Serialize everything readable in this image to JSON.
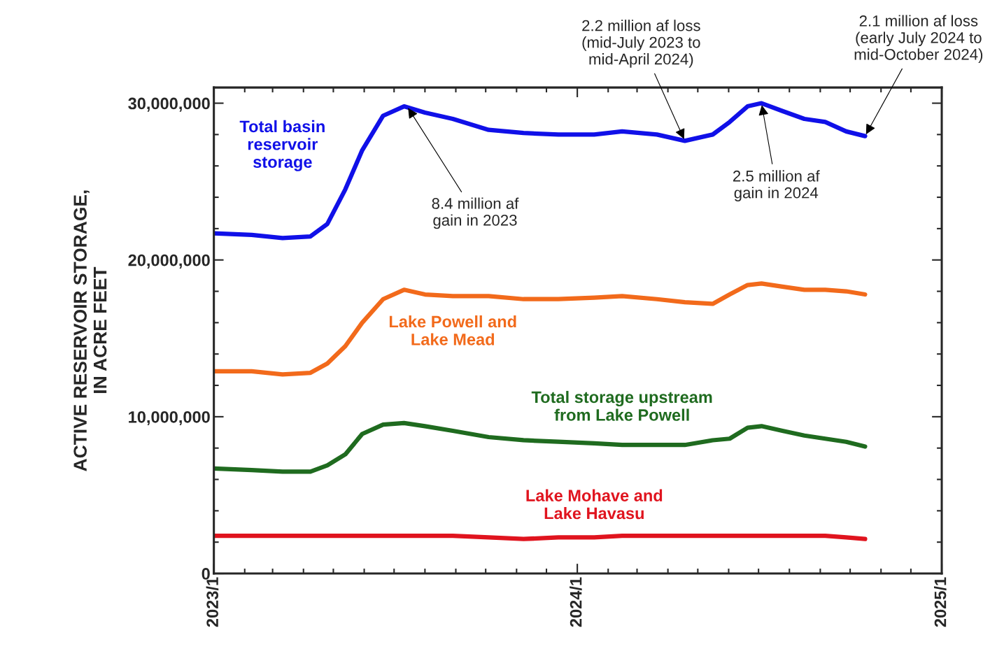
{
  "chart_data": {
    "type": "line",
    "ylabel": "ACTIVE RESERVOIR STORAGE,\nIN ACRE FEET",
    "x": [
      "2023-01-01",
      "2023-02-08",
      "2023-03-11",
      "2023-04-08",
      "2023-04-25",
      "2023-05-13",
      "2023-05-30",
      "2023-06-20",
      "2023-07-11",
      "2023-08-01",
      "2023-08-29",
      "2023-10-04",
      "2023-11-08",
      "2023-12-13",
      "2024-01-18",
      "2024-02-15",
      "2024-03-21",
      "2024-04-18",
      "2024-05-16",
      "2024-06-02",
      "2024-06-20",
      "2024-07-04",
      "2024-07-25",
      "2024-08-16",
      "2024-09-06",
      "2024-09-27",
      "2024-10-16"
    ],
    "series": [
      {
        "name": "Total basin\nreservoir\nstorage",
        "color": "#1010e8",
        "values": [
          21700000,
          21600000,
          21400000,
          21500000,
          22300000,
          24500000,
          27000000,
          29200000,
          29800000,
          29400000,
          29000000,
          28300000,
          28100000,
          28000000,
          28000000,
          28200000,
          28000000,
          27600000,
          28000000,
          28800000,
          29800000,
          30000000,
          29500000,
          29000000,
          28800000,
          28200000,
          27900000
        ]
      },
      {
        "name": "Lake Powell and\nLake Mead",
        "color": "#f26a1b",
        "values": [
          12900000,
          12900000,
          12700000,
          12800000,
          13400000,
          14500000,
          16000000,
          17500000,
          18100000,
          17800000,
          17700000,
          17700000,
          17500000,
          17500000,
          17600000,
          17700000,
          17500000,
          17300000,
          17200000,
          17800000,
          18400000,
          18500000,
          18300000,
          18100000,
          18100000,
          18000000,
          17800000
        ]
      },
      {
        "name": "Total storage upstream\nfrom Lake Powell",
        "color": "#1f6b1f",
        "values": [
          6700000,
          6600000,
          6500000,
          6500000,
          6900000,
          7600000,
          8900000,
          9500000,
          9600000,
          9400000,
          9100000,
          8700000,
          8500000,
          8400000,
          8300000,
          8200000,
          8200000,
          8200000,
          8500000,
          8600000,
          9300000,
          9400000,
          9100000,
          8800000,
          8600000,
          8400000,
          8100000
        ]
      },
      {
        "name": "Lake Mohave and\nLake Havasu",
        "color": "#e0141e",
        "values": [
          2400000,
          2400000,
          2400000,
          2400000,
          2400000,
          2400000,
          2400000,
          2400000,
          2400000,
          2400000,
          2400000,
          2300000,
          2200000,
          2300000,
          2300000,
          2400000,
          2400000,
          2400000,
          2400000,
          2400000,
          2400000,
          2400000,
          2400000,
          2400000,
          2400000,
          2300000,
          2200000
        ]
      }
    ],
    "annotations": [
      {
        "text": "8.4 million af\ngain in 2023",
        "x": "2023-07-14",
        "y": 29800000
      },
      {
        "text": "2.5 million af\ngain in 2024",
        "x": "2024-07-04",
        "y": 30000000
      },
      {
        "text": "2.2 million af loss\n(mid-July 2023 to\nmid-April 2024)",
        "x": "2024-04-18",
        "y": 27600000
      },
      {
        "text": "2.1 million af loss\n(early July 2024 to\nmid-October 2024)",
        "x": "2024-10-16",
        "y": 27900000
      }
    ],
    "xlim": [
      "2023-01-01",
      "2025-01-01"
    ],
    "xticks": [
      {
        "value": "2023-01-01",
        "label": "2023/1"
      },
      {
        "value": "2024-01-01",
        "label": "2024/1"
      },
      {
        "value": "2025-01-01",
        "label": "2025/1"
      }
    ],
    "ylim": [
      0,
      31000000
    ],
    "yticks": [
      0,
      {
        "value": 10000000,
        "label": "10,000,000"
      },
      {
        "value": 20000000,
        "label": "20,000,000"
      },
      {
        "value": 30000000,
        "label": "30,000,000"
      }
    ],
    "grid": false,
    "legend": false,
    "marker": "none",
    "line_style": "solid"
  }
}
